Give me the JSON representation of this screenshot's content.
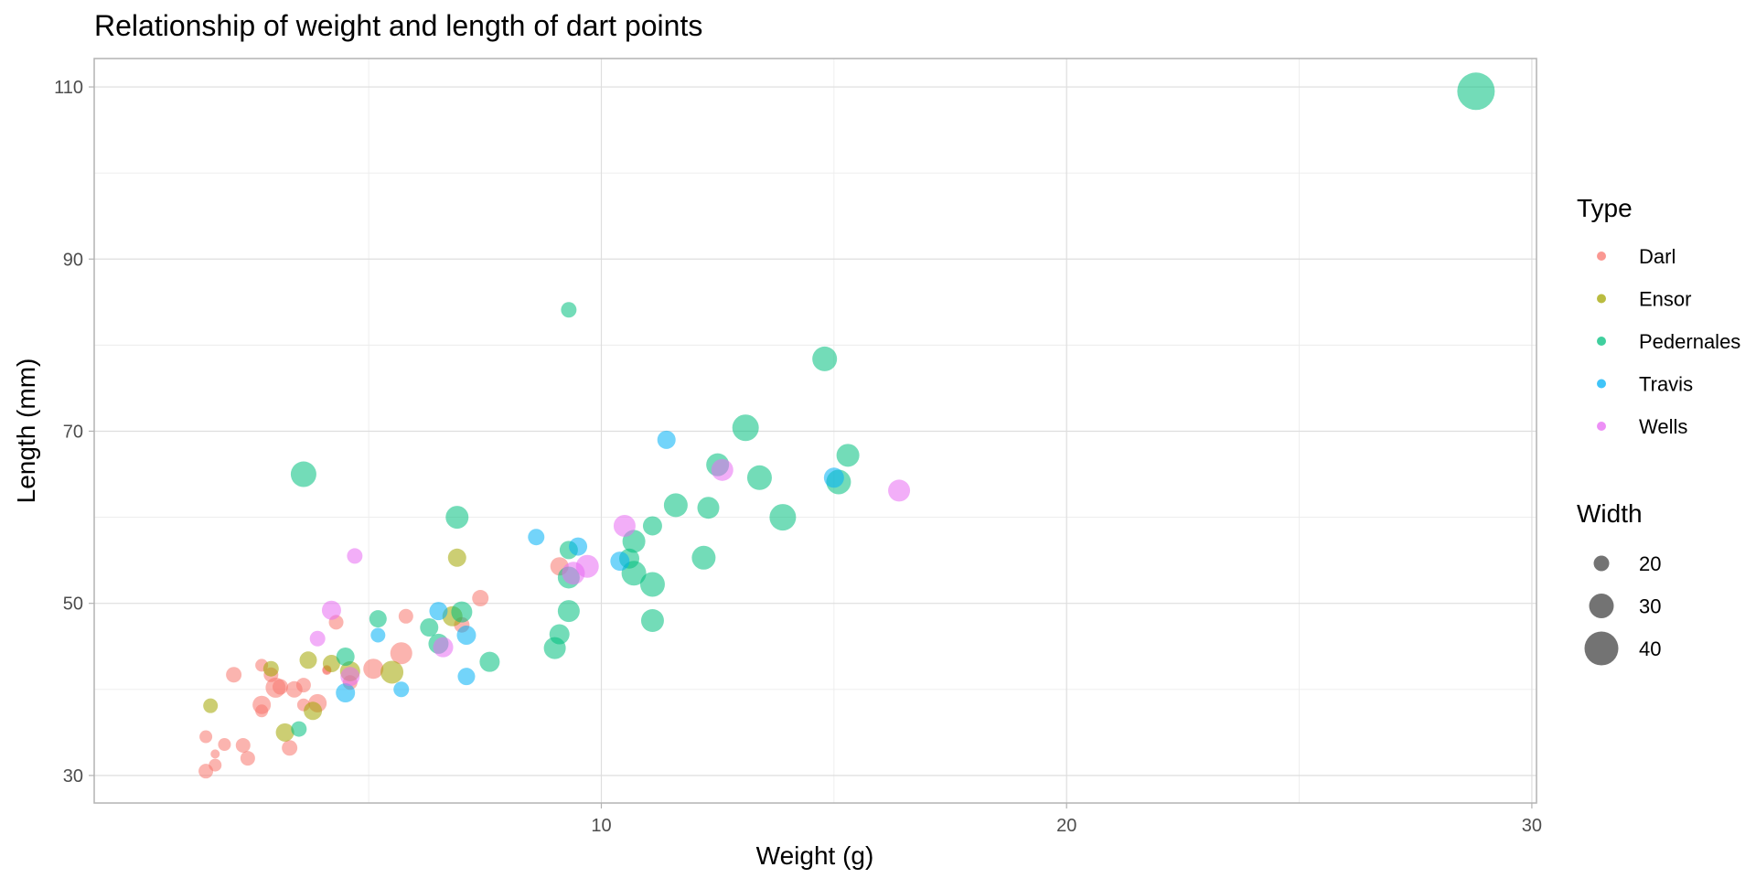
{
  "chart_data": {
    "type": "scatter",
    "title": "Relationship of weight and length of dart points",
    "xlabel": "Weight (g)",
    "ylabel": "Length (mm)",
    "xlim": [
      -0.9,
      30.1
    ],
    "ylim": [
      26.8,
      113.3
    ],
    "x_ticks": [
      10,
      20,
      30
    ],
    "x_tick_labels": [
      "10",
      "20",
      "30"
    ],
    "x_minor_ticks": [
      5,
      15,
      25
    ],
    "y_ticks": [
      30,
      50,
      70,
      90,
      110
    ],
    "y_tick_labels": [
      "30",
      "50",
      "70",
      "90",
      "110"
    ],
    "y_minor_ticks": [
      40,
      60,
      80,
      100
    ],
    "grid": true,
    "point_alpha": 0.55,
    "legend_placement": "right",
    "legend": {
      "color_title": "Type",
      "size_title": "Width",
      "size_values": [
        20,
        30,
        40
      ],
      "size_labels": [
        "20",
        "30",
        "40"
      ]
    },
    "series": [
      {
        "name": "Darl",
        "color": "#F8766D",
        "points": [
          {
            "x": 1.5,
            "y": 30.5,
            "w": 19
          },
          {
            "x": 1.7,
            "y": 31.2,
            "w": 17
          },
          {
            "x": 1.7,
            "y": 32.5,
            "w": 13
          },
          {
            "x": 1.5,
            "y": 34.5,
            "w": 17
          },
          {
            "x": 1.9,
            "y": 33.6,
            "w": 17
          },
          {
            "x": 2.3,
            "y": 33.5,
            "w": 19
          },
          {
            "x": 2.4,
            "y": 32.0,
            "w": 19
          },
          {
            "x": 2.1,
            "y": 41.7,
            "w": 20
          },
          {
            "x": 2.7,
            "y": 42.8,
            "w": 17
          },
          {
            "x": 2.7,
            "y": 37.5,
            "w": 17
          },
          {
            "x": 2.7,
            "y": 38.2,
            "w": 23
          },
          {
            "x": 3.0,
            "y": 40.2,
            "w": 25
          },
          {
            "x": 3.1,
            "y": 40.3,
            "w": 20
          },
          {
            "x": 2.9,
            "y": 41.7,
            "w": 19
          },
          {
            "x": 3.4,
            "y": 40.0,
            "w": 21
          },
          {
            "x": 3.6,
            "y": 40.5,
            "w": 19
          },
          {
            "x": 3.6,
            "y": 38.2,
            "w": 17
          },
          {
            "x": 3.3,
            "y": 33.2,
            "w": 20
          },
          {
            "x": 3.9,
            "y": 38.4,
            "w": 23
          },
          {
            "x": 4.1,
            "y": 42.3,
            "w": 13
          },
          {
            "x": 4.1,
            "y": 42.2,
            "w": 13
          },
          {
            "x": 4.3,
            "y": 47.8,
            "w": 19
          },
          {
            "x": 4.6,
            "y": 40.8,
            "w": 19
          },
          {
            "x": 5.1,
            "y": 42.4,
            "w": 25
          },
          {
            "x": 5.8,
            "y": 48.5,
            "w": 19
          },
          {
            "x": 5.7,
            "y": 44.2,
            "w": 27
          },
          {
            "x": 7.0,
            "y": 47.5,
            "w": 20
          },
          {
            "x": 7.4,
            "y": 50.6,
            "w": 21
          },
          {
            "x": 9.1,
            "y": 54.3,
            "w": 23
          }
        ]
      },
      {
        "name": "Ensor",
        "color": "#A3A500",
        "points": [
          {
            "x": 1.6,
            "y": 38.1,
            "w": 19
          },
          {
            "x": 2.9,
            "y": 42.4,
            "w": 20
          },
          {
            "x": 3.2,
            "y": 35.0,
            "w": 23
          },
          {
            "x": 3.7,
            "y": 43.4,
            "w": 22
          },
          {
            "x": 3.8,
            "y": 37.5,
            "w": 23
          },
          {
            "x": 4.2,
            "y": 43.0,
            "w": 22
          },
          {
            "x": 4.6,
            "y": 42.1,
            "w": 25
          },
          {
            "x": 5.5,
            "y": 42.0,
            "w": 28
          },
          {
            "x": 6.8,
            "y": 48.5,
            "w": 25
          },
          {
            "x": 6.9,
            "y": 55.3,
            "w": 23
          }
        ]
      },
      {
        "name": "Pedernales",
        "color": "#00BF7D",
        "points": [
          {
            "x": 3.5,
            "y": 35.4,
            "w": 20
          },
          {
            "x": 3.6,
            "y": 65.0,
            "w": 31
          },
          {
            "x": 4.5,
            "y": 43.8,
            "w": 23
          },
          {
            "x": 5.2,
            "y": 48.2,
            "w": 22
          },
          {
            "x": 6.3,
            "y": 47.2,
            "w": 23
          },
          {
            "x": 6.5,
            "y": 45.3,
            "w": 25
          },
          {
            "x": 6.9,
            "y": 60.0,
            "w": 28
          },
          {
            "x": 7.0,
            "y": 49.0,
            "w": 26
          },
          {
            "x": 7.6,
            "y": 43.2,
            "w": 25
          },
          {
            "x": 9.0,
            "y": 44.8,
            "w": 27
          },
          {
            "x": 9.1,
            "y": 46.4,
            "w": 25
          },
          {
            "x": 9.3,
            "y": 84.1,
            "w": 20
          },
          {
            "x": 9.3,
            "y": 56.2,
            "w": 23
          },
          {
            "x": 9.3,
            "y": 53.0,
            "w": 27
          },
          {
            "x": 9.3,
            "y": 49.1,
            "w": 27
          },
          {
            "x": 10.6,
            "y": 55.2,
            "w": 25
          },
          {
            "x": 10.7,
            "y": 57.2,
            "w": 28
          },
          {
            "x": 10.7,
            "y": 53.5,
            "w": 30
          },
          {
            "x": 11.1,
            "y": 59.0,
            "w": 24
          },
          {
            "x": 11.1,
            "y": 52.2,
            "w": 30
          },
          {
            "x": 11.1,
            "y": 48.0,
            "w": 28
          },
          {
            "x": 11.6,
            "y": 61.4,
            "w": 29
          },
          {
            "x": 12.2,
            "y": 55.3,
            "w": 29
          },
          {
            "x": 12.3,
            "y": 61.1,
            "w": 27
          },
          {
            "x": 12.5,
            "y": 66.1,
            "w": 28
          },
          {
            "x": 13.1,
            "y": 70.4,
            "w": 32
          },
          {
            "x": 13.4,
            "y": 64.6,
            "w": 30
          },
          {
            "x": 13.9,
            "y": 60.0,
            "w": 32
          },
          {
            "x": 14.8,
            "y": 78.4,
            "w": 30
          },
          {
            "x": 15.3,
            "y": 67.2,
            "w": 28
          },
          {
            "x": 15.1,
            "y": 64.1,
            "w": 30
          },
          {
            "x": 28.8,
            "y": 109.5,
            "w": 44
          }
        ]
      },
      {
        "name": "Travis",
        "color": "#00B0F6",
        "points": [
          {
            "x": 4.5,
            "y": 39.6,
            "w": 24
          },
          {
            "x": 5.2,
            "y": 46.3,
            "w": 19
          },
          {
            "x": 5.7,
            "y": 40.0,
            "w": 20
          },
          {
            "x": 6.5,
            "y": 49.1,
            "w": 23
          },
          {
            "x": 7.1,
            "y": 46.3,
            "w": 24
          },
          {
            "x": 7.1,
            "y": 41.5,
            "w": 22
          },
          {
            "x": 8.6,
            "y": 57.7,
            "w": 21
          },
          {
            "x": 9.5,
            "y": 56.6,
            "w": 23
          },
          {
            "x": 10.4,
            "y": 54.9,
            "w": 24
          },
          {
            "x": 11.4,
            "y": 69.0,
            "w": 23
          },
          {
            "x": 15.0,
            "y": 64.6,
            "w": 25
          }
        ]
      },
      {
        "name": "Wells",
        "color": "#E76BF3",
        "points": [
          {
            "x": 3.9,
            "y": 45.9,
            "w": 20
          },
          {
            "x": 4.2,
            "y": 49.2,
            "w": 24
          },
          {
            "x": 4.6,
            "y": 41.5,
            "w": 24
          },
          {
            "x": 4.7,
            "y": 55.5,
            "w": 20
          },
          {
            "x": 6.6,
            "y": 44.9,
            "w": 25
          },
          {
            "x": 9.4,
            "y": 53.5,
            "w": 28
          },
          {
            "x": 9.7,
            "y": 54.3,
            "w": 28
          },
          {
            "x": 10.5,
            "y": 59.0,
            "w": 27
          },
          {
            "x": 12.6,
            "y": 65.5,
            "w": 27
          },
          {
            "x": 16.4,
            "y": 63.1,
            "w": 27
          }
        ]
      }
    ]
  }
}
